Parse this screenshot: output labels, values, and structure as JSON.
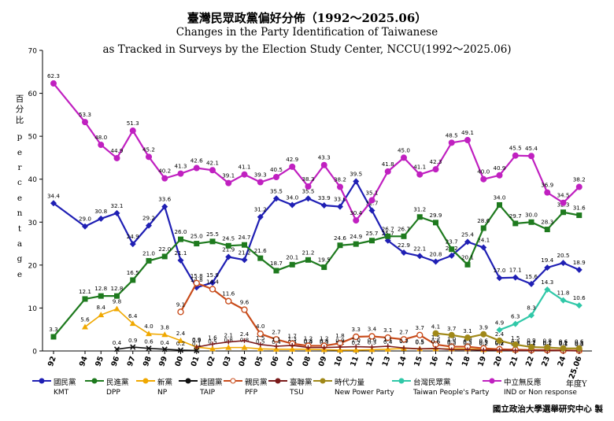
{
  "header": {
    "title_cn": "臺灣民眾政黨偏好分佈（1992～2025.06）",
    "title_en_1": "Changes in the Party Identification of Taiwanese",
    "title_en_2": "as Tracked in Surveys by the Election Study Center, NCCU(1992～2025.06)"
  },
  "y_axis_label_cn": [
    "百",
    "分",
    "比"
  ],
  "y_axis_label_en": [
    "p",
    "e",
    "r",
    "c",
    "e",
    "n",
    "t",
    "a",
    "g",
    "e"
  ],
  "unit_label": "年度Y",
  "credit": "國立政治大學選舉研究中心 製",
  "colors": {
    "KMT": "#1f1fb4",
    "DPP": "#1e7a1e",
    "NP": "#f0a800",
    "TAIP": "#111111",
    "PFP": "#c84b1a",
    "TSU": "#7a1a1a",
    "NPP": "#a08818",
    "TPP": "#30c8a8",
    "IND": "#c020c0"
  },
  "chart_data": {
    "type": "line",
    "ylim": [
      0,
      70
    ],
    "yticks": [
      0,
      10,
      20,
      30,
      40,
      50,
      60,
      70
    ],
    "grid": false,
    "categories": [
      "92",
      "94",
      "95",
      "96",
      "97",
      "98",
      "99",
      "00",
      "01",
      "02",
      "03",
      "04",
      "05",
      "06",
      "07",
      "08",
      "09",
      "10",
      "11",
      "12",
      "13",
      "14",
      "15",
      "16",
      "17",
      "18",
      "19",
      "20",
      "21",
      "22",
      "23",
      "24",
      "25.06"
    ],
    "series": [
      {
        "key": "KMT",
        "name": "國民黨",
        "name_en": "KMT",
        "values": [
          34.4,
          29.0,
          30.8,
          32.1,
          24.9,
          29.2,
          33.6,
          21.1,
          14.8,
          15.9,
          21.9,
          21.2,
          31.2,
          35.5,
          34.0,
          35.5,
          33.9,
          33.6,
          39.5,
          32.7,
          25.7,
          22.9,
          22.1,
          20.8,
          22.2,
          25.4,
          24.1,
          17.0,
          17.1,
          15.6,
          19.4,
          20.5,
          18.9
        ]
      },
      {
        "key": "DPP",
        "name": "民進黨",
        "name_en": "DPP",
        "values": [
          3.3,
          12.1,
          12.8,
          12.8,
          16.5,
          21.0,
          22.0,
          26.0,
          25.0,
          25.5,
          24.5,
          24.7,
          21.6,
          18.7,
          20.1,
          21.2,
          19.5,
          24.6,
          24.9,
          25.7,
          26.7,
          26.7,
          31.2,
          29.9,
          23.7,
          20.1,
          28.6,
          34.0,
          29.7,
          30.0,
          28.3,
          32.3,
          31.6
        ]
      },
      {
        "key": "NP",
        "name": "新黨",
        "name_en": "NP",
        "values": [
          null,
          5.6,
          8.4,
          9.8,
          6.4,
          4.0,
          3.8,
          2.4,
          0.9,
          0.5,
          0.8,
          0.8,
          0.5,
          0.4,
          0.4,
          0.4,
          0.3,
          0.2,
          0.2,
          0.3,
          0.4,
          0.6,
          0.5,
          0.5,
          0.5,
          0.5,
          0.3,
          0.2,
          0.2,
          0.2,
          0.2,
          0.2,
          0.1
        ]
      },
      {
        "key": "TAIP",
        "name": "建國黨",
        "name_en": "TAIP",
        "values": [
          null,
          null,
          null,
          0.4,
          0.9,
          0.6,
          0.4,
          0.2,
          0.1,
          null,
          null,
          null,
          null,
          null,
          null,
          null,
          null,
          null,
          null,
          null,
          null,
          null,
          null,
          null,
          null,
          null,
          null,
          null,
          null,
          null,
          null,
          null,
          null
        ]
      },
      {
        "key": "PFP",
        "name": "親民黨",
        "name_en": "PFP",
        "values": [
          null,
          null,
          null,
          null,
          null,
          null,
          null,
          9.1,
          15.8,
          14.4,
          11.6,
          9.6,
          4.0,
          2.7,
          1.7,
          1.2,
          1.2,
          1.8,
          3.3,
          3.4,
          3.1,
          2.7,
          3.7,
          1.5,
          1.0,
          1.0,
          0.6,
          0.4,
          0.3,
          0.2,
          0.2,
          0.1,
          0.1
        ]
      },
      {
        "key": "TSU",
        "name": "臺聯黨",
        "name_en": "TSU",
        "values": [
          null,
          null,
          null,
          null,
          null,
          null,
          null,
          null,
          0.9,
          1.6,
          2.1,
          2.4,
          1.5,
          1.1,
          1.3,
          0.8,
          0.8,
          0.9,
          1.0,
          0.9,
          1.1,
          0.7,
          0.5,
          0.6,
          0.3,
          0.3,
          0.2,
          0.2,
          0.1,
          0.1,
          0.1,
          0.1,
          0.0
        ]
      },
      {
        "key": "NPP",
        "name": "時代力量",
        "name_en": "New Power Party",
        "values": [
          null,
          null,
          null,
          null,
          null,
          null,
          null,
          null,
          null,
          null,
          null,
          null,
          null,
          null,
          null,
          null,
          null,
          null,
          null,
          null,
          null,
          null,
          null,
          4.1,
          3.7,
          3.1,
          3.9,
          2.4,
          1.5,
          0.9,
          0.8,
          0.6,
          0.6
        ]
      },
      {
        "key": "TPP",
        "name": "台灣民眾黨",
        "name_en": "Taiwan People's Party",
        "values": [
          null,
          null,
          null,
          null,
          null,
          null,
          null,
          null,
          null,
          null,
          null,
          null,
          null,
          null,
          null,
          null,
          null,
          null,
          null,
          null,
          null,
          null,
          null,
          null,
          null,
          null,
          null,
          4.9,
          6.3,
          8.3,
          14.3,
          11.8,
          10.6
        ]
      },
      {
        "key": "IND",
        "name": "中立無反應",
        "name_en": "IND or Non response",
        "values": [
          62.3,
          53.3,
          48.0,
          44.9,
          51.3,
          45.2,
          40.2,
          41.3,
          42.6,
          42.1,
          39.1,
          41.1,
          39.3,
          40.5,
          42.9,
          38.3,
          43.3,
          38.2,
          30.4,
          35.1,
          41.8,
          45.0,
          41.1,
          42.3,
          48.5,
          49.1,
          40.0,
          40.9,
          45.5,
          45.4,
          36.9,
          34.5,
          38.2
        ]
      }
    ]
  }
}
